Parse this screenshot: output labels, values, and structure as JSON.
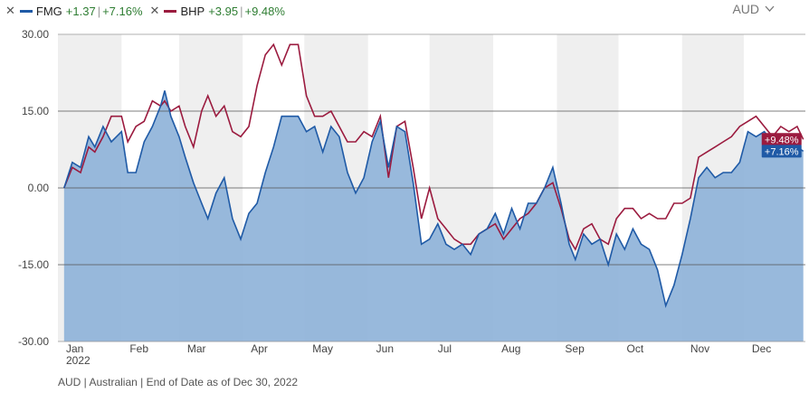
{
  "legend": {
    "close_glyph": "✕",
    "items": [
      {
        "name": "FMG",
        "change": "+1.37",
        "pct": "+7.16%",
        "color": "#1f5aa6"
      },
      {
        "name": "BHP",
        "change": "+3.95",
        "pct": "+9.48%",
        "color": "#9b1b3f"
      }
    ],
    "separator": "|"
  },
  "currency_selector": {
    "value": "AUD",
    "chevron_icon": "chevron-down-icon"
  },
  "footer": {
    "note": "AUD | Australian | End of Date as of Dec 30, 2022"
  },
  "colors": {
    "fmg_line": "#1f5aa6",
    "fmg_fill": "#8fb3d9",
    "bhp_line": "#9b1b3f",
    "band": "#efefef",
    "grid": "#555555",
    "positive": "#2e7d32"
  },
  "chart_data": {
    "type": "area",
    "x_start": "2022-01-01",
    "x_end": "2022-12-31",
    "x_months": [
      "Jan",
      "Feb",
      "Mar",
      "Apr",
      "May",
      "Jun",
      "Jul",
      "Aug",
      "Sep",
      "Oct",
      "Nov",
      "Dec"
    ],
    "x_month_starts": [
      "2022-01-01",
      "2022-02-01",
      "2022-03-01",
      "2022-04-01",
      "2022-05-01",
      "2022-06-01",
      "2022-07-01",
      "2022-08-01",
      "2022-09-01",
      "2022-10-01",
      "2022-11-01",
      "2022-12-01"
    ],
    "year_label": "2022",
    "y_ticks": [
      "30.00",
      "15.00",
      "0.00",
      "-15.00",
      "-30.00"
    ],
    "y_tick_values": [
      30,
      15,
      0,
      -15,
      -30
    ],
    "ylim": [
      -30,
      30
    ],
    "grid": "horizontal",
    "series": [
      {
        "name": "FMG",
        "end_label": "+7.16%",
        "points": [
          [
            "2022-01-04",
            0
          ],
          [
            "2022-01-08",
            5
          ],
          [
            "2022-01-12",
            4
          ],
          [
            "2022-01-16",
            10
          ],
          [
            "2022-01-19",
            8
          ],
          [
            "2022-01-23",
            12
          ],
          [
            "2022-01-27",
            9
          ],
          [
            "2022-02-01",
            11
          ],
          [
            "2022-02-04",
            3
          ],
          [
            "2022-02-08",
            3
          ],
          [
            "2022-02-12",
            9
          ],
          [
            "2022-02-16",
            12
          ],
          [
            "2022-02-20",
            16
          ],
          [
            "2022-02-22",
            19
          ],
          [
            "2022-02-25",
            14
          ],
          [
            "2022-03-01",
            10
          ],
          [
            "2022-03-04",
            6
          ],
          [
            "2022-03-08",
            1
          ],
          [
            "2022-03-12",
            -3
          ],
          [
            "2022-03-15",
            -6
          ],
          [
            "2022-03-19",
            -1
          ],
          [
            "2022-03-23",
            2
          ],
          [
            "2022-03-27",
            -6
          ],
          [
            "2022-03-31",
            -10
          ],
          [
            "2022-04-04",
            -5
          ],
          [
            "2022-04-08",
            -3
          ],
          [
            "2022-04-12",
            3
          ],
          [
            "2022-04-16",
            8
          ],
          [
            "2022-04-20",
            14
          ],
          [
            "2022-04-24",
            14
          ],
          [
            "2022-04-28",
            14
          ],
          [
            "2022-05-02",
            11
          ],
          [
            "2022-05-06",
            12
          ],
          [
            "2022-05-10",
            7
          ],
          [
            "2022-05-14",
            12
          ],
          [
            "2022-05-18",
            10
          ],
          [
            "2022-05-22",
            3
          ],
          [
            "2022-05-26",
            -1
          ],
          [
            "2022-05-30",
            2
          ],
          [
            "2022-06-03",
            9
          ],
          [
            "2022-06-07",
            13
          ],
          [
            "2022-06-11",
            4
          ],
          [
            "2022-06-15",
            12
          ],
          [
            "2022-06-19",
            11
          ],
          [
            "2022-06-23",
            1
          ],
          [
            "2022-06-27",
            -11
          ],
          [
            "2022-07-01",
            -10
          ],
          [
            "2022-07-05",
            -7
          ],
          [
            "2022-07-09",
            -11
          ],
          [
            "2022-07-13",
            -12
          ],
          [
            "2022-07-17",
            -11
          ],
          [
            "2022-07-21",
            -13
          ],
          [
            "2022-07-25",
            -9
          ],
          [
            "2022-07-29",
            -8
          ],
          [
            "2022-08-02",
            -5
          ],
          [
            "2022-08-06",
            -9
          ],
          [
            "2022-08-10",
            -4
          ],
          [
            "2022-08-14",
            -8
          ],
          [
            "2022-08-18",
            -3
          ],
          [
            "2022-08-22",
            -3
          ],
          [
            "2022-08-26",
            0
          ],
          [
            "2022-08-30",
            4
          ],
          [
            "2022-09-03",
            -3
          ],
          [
            "2022-09-07",
            -11
          ],
          [
            "2022-09-10",
            -14
          ],
          [
            "2022-09-14",
            -9
          ],
          [
            "2022-09-18",
            -11
          ],
          [
            "2022-09-22",
            -10
          ],
          [
            "2022-09-26",
            -15
          ],
          [
            "2022-09-30",
            -9
          ],
          [
            "2022-10-04",
            -12
          ],
          [
            "2022-10-08",
            -8
          ],
          [
            "2022-10-12",
            -11
          ],
          [
            "2022-10-16",
            -12
          ],
          [
            "2022-10-20",
            -16
          ],
          [
            "2022-10-24",
            -23
          ],
          [
            "2022-10-28",
            -19
          ],
          [
            "2022-11-01",
            -13
          ],
          [
            "2022-11-05",
            -6
          ],
          [
            "2022-11-09",
            2
          ],
          [
            "2022-11-13",
            4
          ],
          [
            "2022-11-17",
            2
          ],
          [
            "2022-11-21",
            3
          ],
          [
            "2022-11-25",
            3
          ],
          [
            "2022-11-29",
            5
          ],
          [
            "2022-12-03",
            11
          ],
          [
            "2022-12-07",
            10
          ],
          [
            "2022-12-11",
            11
          ],
          [
            "2022-12-15",
            9
          ],
          [
            "2022-12-19",
            10
          ],
          [
            "2022-12-23",
            9
          ],
          [
            "2022-12-27",
            8
          ],
          [
            "2022-12-30",
            7.16
          ]
        ]
      },
      {
        "name": "BHP",
        "end_label": "+9.48%",
        "points": [
          [
            "2022-01-04",
            0
          ],
          [
            "2022-01-08",
            4
          ],
          [
            "2022-01-12",
            3
          ],
          [
            "2022-01-16",
            8
          ],
          [
            "2022-01-19",
            7
          ],
          [
            "2022-01-23",
            10
          ],
          [
            "2022-01-27",
            14
          ],
          [
            "2022-02-01",
            14
          ],
          [
            "2022-02-04",
            9
          ],
          [
            "2022-02-08",
            12
          ],
          [
            "2022-02-12",
            13
          ],
          [
            "2022-02-16",
            17
          ],
          [
            "2022-02-20",
            16
          ],
          [
            "2022-02-22",
            17
          ],
          [
            "2022-02-25",
            15
          ],
          [
            "2022-03-01",
            16
          ],
          [
            "2022-03-04",
            12
          ],
          [
            "2022-03-08",
            8
          ],
          [
            "2022-03-12",
            15
          ],
          [
            "2022-03-15",
            18
          ],
          [
            "2022-03-19",
            14
          ],
          [
            "2022-03-23",
            16
          ],
          [
            "2022-03-27",
            11
          ],
          [
            "2022-03-31",
            10
          ],
          [
            "2022-04-04",
            12
          ],
          [
            "2022-04-08",
            20
          ],
          [
            "2022-04-12",
            26
          ],
          [
            "2022-04-16",
            28
          ],
          [
            "2022-04-20",
            24
          ],
          [
            "2022-04-24",
            28
          ],
          [
            "2022-04-28",
            28
          ],
          [
            "2022-05-02",
            18
          ],
          [
            "2022-05-06",
            14
          ],
          [
            "2022-05-10",
            14
          ],
          [
            "2022-05-14",
            15
          ],
          [
            "2022-05-18",
            12
          ],
          [
            "2022-05-22",
            9
          ],
          [
            "2022-05-26",
            9
          ],
          [
            "2022-05-30",
            11
          ],
          [
            "2022-06-03",
            10
          ],
          [
            "2022-06-07",
            14
          ],
          [
            "2022-06-11",
            2
          ],
          [
            "2022-06-15",
            12
          ],
          [
            "2022-06-19",
            13
          ],
          [
            "2022-06-23",
            4
          ],
          [
            "2022-06-27",
            -6
          ],
          [
            "2022-07-01",
            0
          ],
          [
            "2022-07-05",
            -6
          ],
          [
            "2022-07-09",
            -8
          ],
          [
            "2022-07-13",
            -10
          ],
          [
            "2022-07-17",
            -11
          ],
          [
            "2022-07-21",
            -11
          ],
          [
            "2022-07-25",
            -9
          ],
          [
            "2022-07-29",
            -8
          ],
          [
            "2022-08-02",
            -7
          ],
          [
            "2022-08-06",
            -10
          ],
          [
            "2022-08-10",
            -8
          ],
          [
            "2022-08-14",
            -6
          ],
          [
            "2022-08-18",
            -5
          ],
          [
            "2022-08-22",
            -3
          ],
          [
            "2022-08-26",
            0
          ],
          [
            "2022-08-30",
            1
          ],
          [
            "2022-09-03",
            -4
          ],
          [
            "2022-09-07",
            -10
          ],
          [
            "2022-09-10",
            -12
          ],
          [
            "2022-09-14",
            -8
          ],
          [
            "2022-09-18",
            -7
          ],
          [
            "2022-09-22",
            -10
          ],
          [
            "2022-09-26",
            -11
          ],
          [
            "2022-09-30",
            -6
          ],
          [
            "2022-10-04",
            -4
          ],
          [
            "2022-10-08",
            -4
          ],
          [
            "2022-10-12",
            -6
          ],
          [
            "2022-10-16",
            -5
          ],
          [
            "2022-10-20",
            -6
          ],
          [
            "2022-10-24",
            -6
          ],
          [
            "2022-10-28",
            -3
          ],
          [
            "2022-11-01",
            -3
          ],
          [
            "2022-11-05",
            -2
          ],
          [
            "2022-11-09",
            6
          ],
          [
            "2022-11-13",
            7
          ],
          [
            "2022-11-17",
            8
          ],
          [
            "2022-11-21",
            9
          ],
          [
            "2022-11-25",
            10
          ],
          [
            "2022-11-29",
            12
          ],
          [
            "2022-12-03",
            13
          ],
          [
            "2022-12-07",
            14
          ],
          [
            "2022-12-11",
            12
          ],
          [
            "2022-12-15",
            10
          ],
          [
            "2022-12-19",
            12
          ],
          [
            "2022-12-23",
            11
          ],
          [
            "2022-12-27",
            12
          ],
          [
            "2022-12-30",
            9.48
          ]
        ]
      }
    ]
  }
}
